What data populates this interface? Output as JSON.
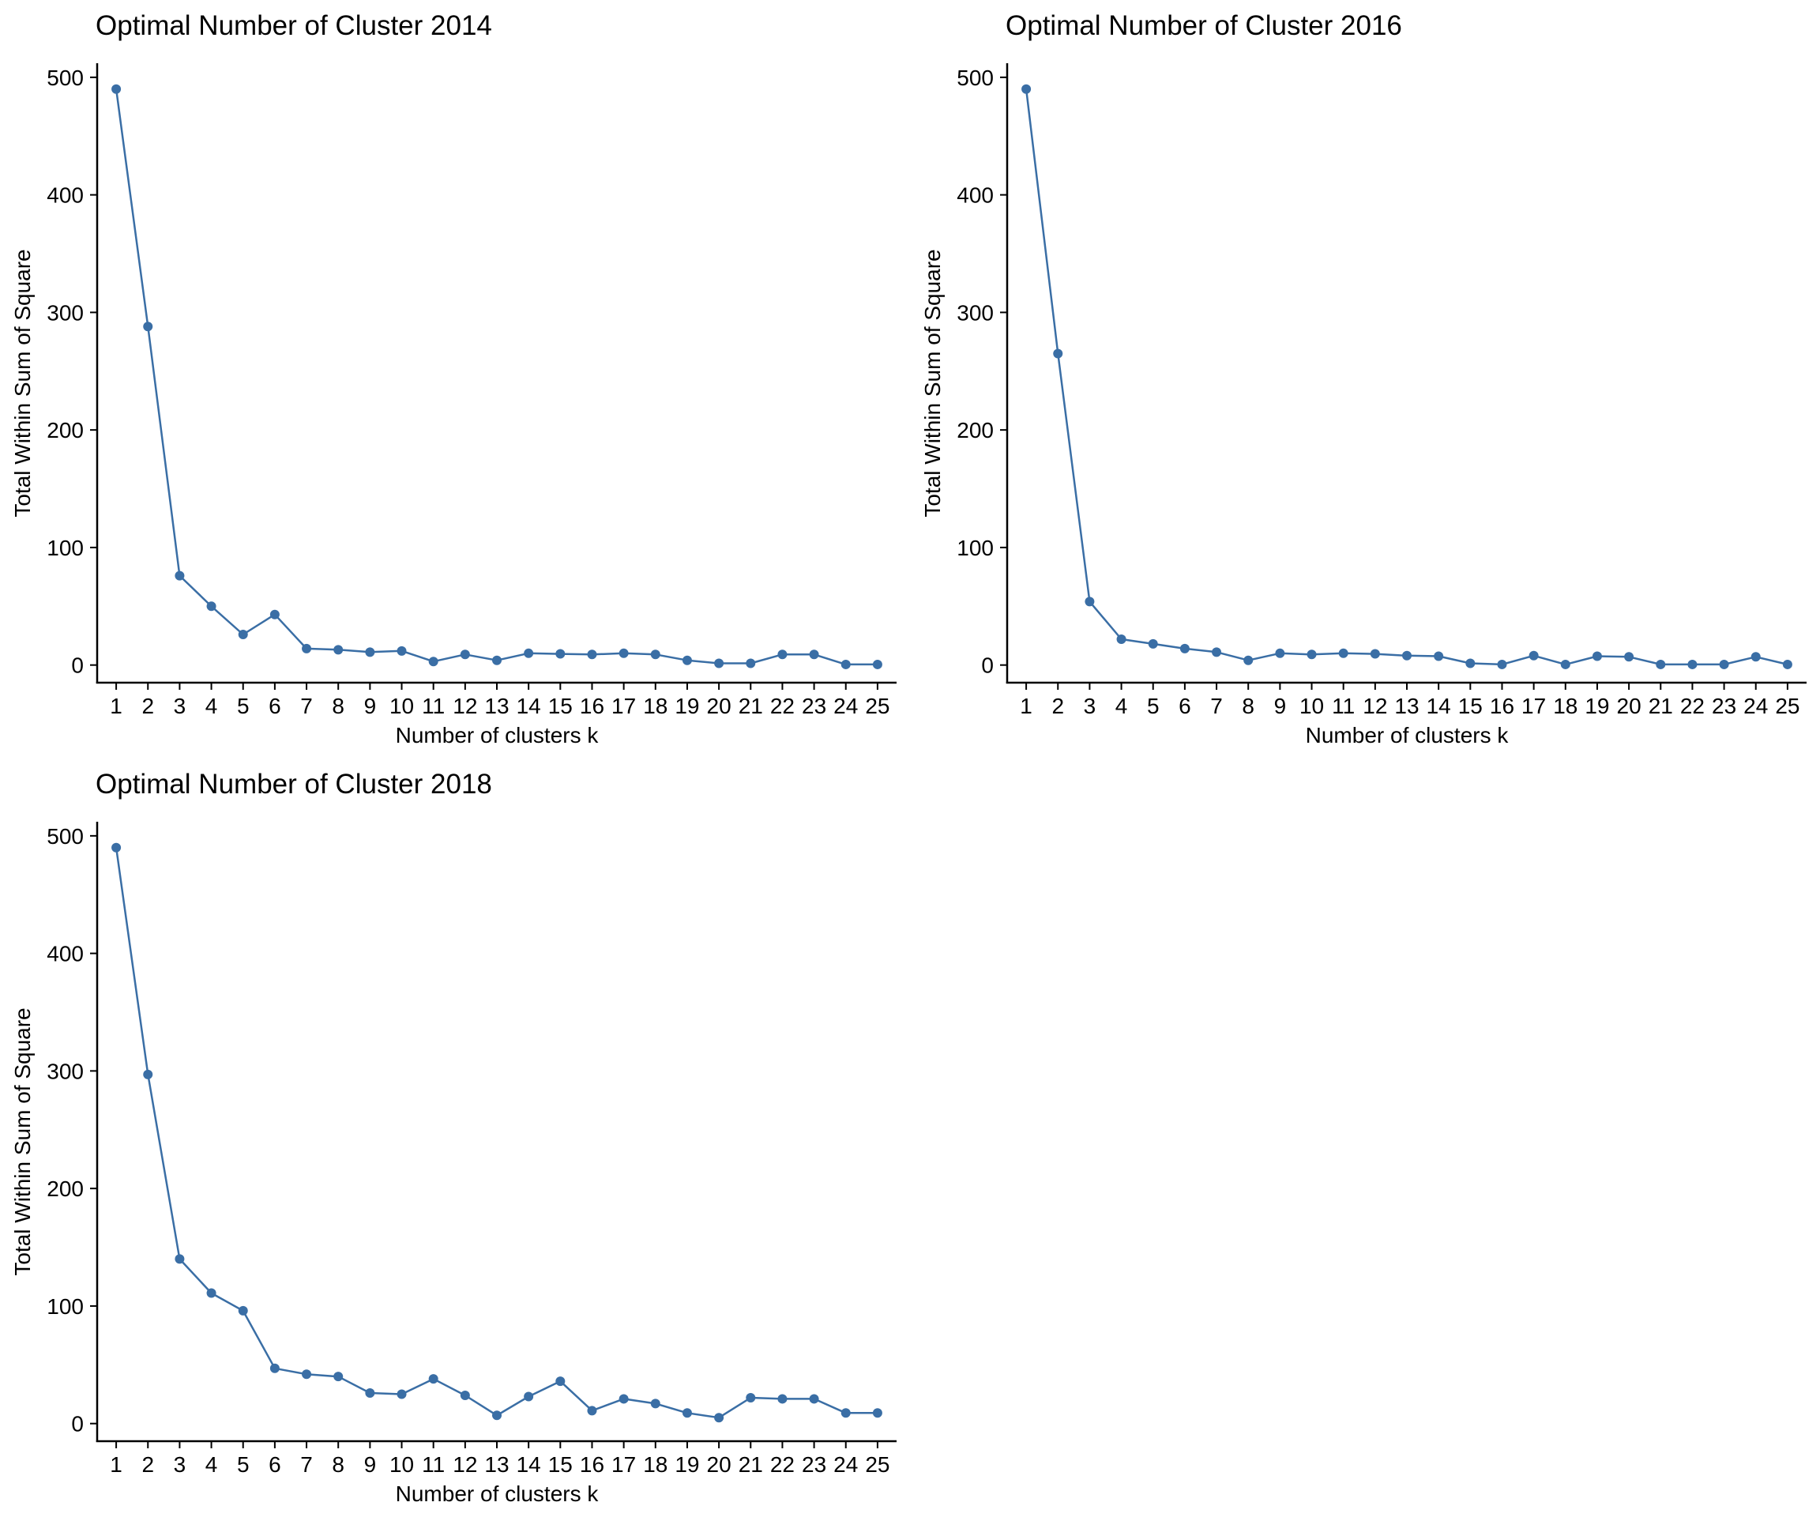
{
  "style": {
    "line_color": "#3a6ea5",
    "point_color": "#3a6ea5",
    "axis_color": "#000000"
  },
  "chart_data": [
    {
      "type": "line",
      "title": "Optimal Number of Cluster 2014",
      "xlabel": "Number of clusters k",
      "ylabel": "Total Within Sum of Square",
      "x": [
        1,
        2,
        3,
        4,
        5,
        6,
        7,
        8,
        9,
        10,
        11,
        12,
        13,
        14,
        15,
        16,
        17,
        18,
        19,
        20,
        21,
        22,
        23,
        24,
        25
      ],
      "y": [
        490,
        288,
        76,
        50,
        26,
        43,
        14,
        13,
        11,
        12,
        3,
        9,
        4,
        10,
        9.5,
        9,
        10,
        9,
        4,
        1.5,
        1.5,
        9,
        9,
        0.5,
        0.5
      ],
      "yticks": [
        0,
        100,
        200,
        300,
        400,
        500
      ],
      "ylim": [
        -15,
        512
      ],
      "xlim": [
        0.4,
        25.6
      ],
      "grid": false,
      "legend": "none"
    },
    {
      "type": "line",
      "title": "Optimal Number of Cluster 2016",
      "xlabel": "Number of clusters k",
      "ylabel": "Total Within Sum of Square",
      "x": [
        1,
        2,
        3,
        4,
        5,
        6,
        7,
        8,
        9,
        10,
        11,
        12,
        13,
        14,
        15,
        16,
        17,
        18,
        19,
        20,
        21,
        22,
        23,
        24,
        25
      ],
      "y": [
        490,
        265,
        54,
        22,
        18,
        14,
        11,
        4,
        10,
        9,
        10,
        9.5,
        8,
        7.5,
        1.5,
        0.5,
        8,
        0.5,
        7.5,
        7,
        0.5,
        0.5,
        0.5,
        7,
        0.5
      ],
      "yticks": [
        0,
        100,
        200,
        300,
        400,
        500
      ],
      "ylim": [
        -15,
        512
      ],
      "xlim": [
        0.4,
        25.6
      ],
      "grid": false,
      "legend": "none"
    },
    {
      "type": "line",
      "title": "Optimal Number of Cluster 2018",
      "xlabel": "Number of clusters k",
      "ylabel": "Total Within Sum of Square",
      "x": [
        1,
        2,
        3,
        4,
        5,
        6,
        7,
        8,
        9,
        10,
        11,
        12,
        13,
        14,
        15,
        16,
        17,
        18,
        19,
        20,
        21,
        22,
        23,
        24,
        25
      ],
      "y": [
        490,
        297,
        140,
        111,
        96,
        47,
        42,
        40,
        26,
        25,
        38,
        24,
        7,
        23,
        36,
        11,
        21,
        17,
        9,
        5,
        22,
        21,
        21,
        9,
        9
      ],
      "yticks": [
        0,
        100,
        200,
        300,
        400,
        500
      ],
      "ylim": [
        -15,
        512
      ],
      "xlim": [
        0.4,
        25.6
      ],
      "grid": false,
      "legend": "none"
    }
  ]
}
